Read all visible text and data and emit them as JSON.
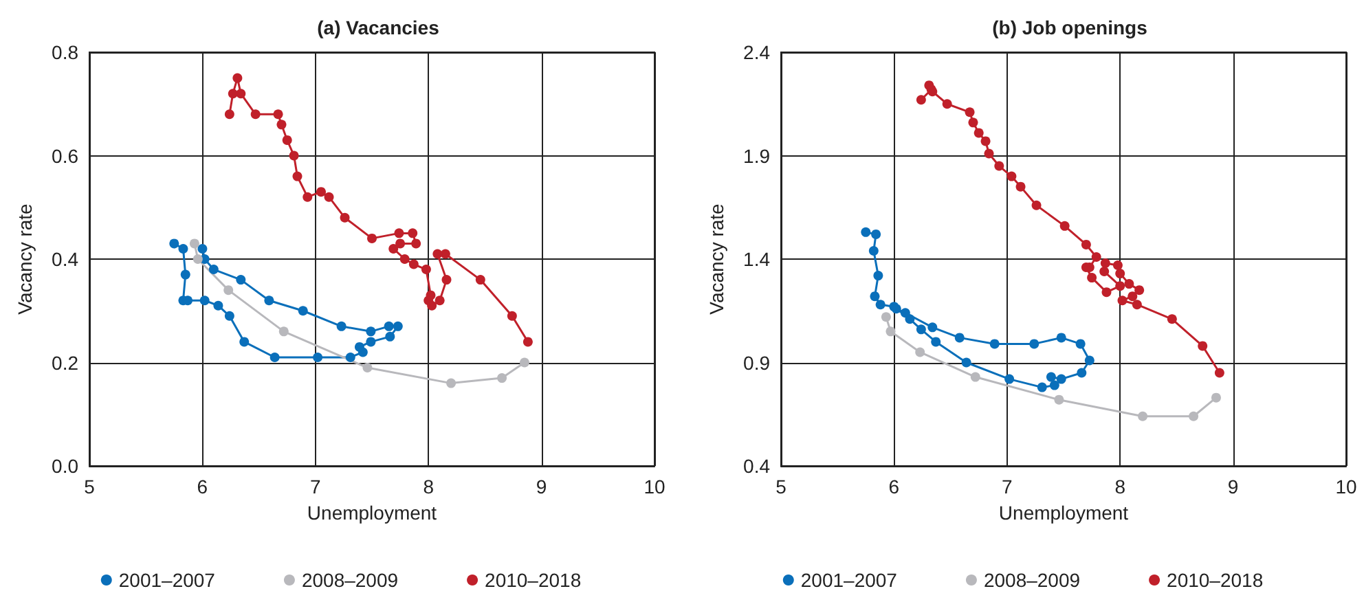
{
  "chart_data": [
    {
      "type": "line",
      "title": "(a) Vacancies",
      "xlabel": "Unemployment",
      "ylabel": "Vacancy rate",
      "xlim": [
        5,
        10
      ],
      "xticks": [
        5,
        6,
        7,
        8,
        9,
        10
      ],
      "ylim": [
        0,
        0.8
      ],
      "yticks": [
        {
          "value": 0,
          "label": "0.0"
        },
        {
          "value": 0.2,
          "label": "0.2"
        },
        {
          "value": 0.4,
          "label": "0.4"
        },
        {
          "value": 0.6,
          "label": "0.6"
        },
        {
          "value": 0.8,
          "label": "0.8"
        }
      ],
      "grid": true,
      "legend": "bottom",
      "marker": "circle",
      "line_style": "solid",
      "series": [
        {
          "name": "2001–2007",
          "color": "#0a6fba",
          "x": [
            5.75,
            5.83,
            5.85,
            5.83,
            5.87,
            6.02,
            6.14,
            6.24,
            6.37,
            6.64,
            7.02,
            7.31,
            7.42,
            7.39,
            7.49,
            7.66,
            7.73,
            7.65,
            7.49,
            7.23,
            6.89,
            6.59,
            6.34,
            6.1,
            6.02,
            6.0
          ],
          "values": [
            0.43,
            0.42,
            0.37,
            0.32,
            0.32,
            0.32,
            0.31,
            0.29,
            0.24,
            0.21,
            0.21,
            0.21,
            0.22,
            0.23,
            0.24,
            0.25,
            0.27,
            0.27,
            0.26,
            0.27,
            0.3,
            0.32,
            0.36,
            0.38,
            0.4,
            0.42
          ]
        },
        {
          "name": "2008–2009",
          "color": "#b8b8bc",
          "x": [
            5.93,
            5.96,
            6.23,
            6.72,
            7.46,
            8.2,
            8.65,
            8.85
          ],
          "values": [
            0.43,
            0.4,
            0.34,
            0.26,
            0.19,
            0.16,
            0.17,
            0.2
          ]
        },
        {
          "name": "2010–2018",
          "color": "#c0202a",
          "x": [
            8.88,
            8.74,
            8.46,
            8.15,
            8.08,
            8.16,
            8.1,
            8.03,
            8.0,
            8.02,
            7.98,
            7.87,
            7.79,
            7.69,
            7.75,
            7.89,
            7.86,
            7.74,
            7.5,
            7.26,
            7.12,
            7.05,
            6.93,
            6.84,
            6.81,
            6.75,
            6.7,
            6.67,
            6.47,
            6.34,
            6.31,
            6.27,
            6.24
          ],
          "values": [
            0.24,
            0.29,
            0.36,
            0.41,
            0.41,
            0.36,
            0.32,
            0.31,
            0.32,
            0.33,
            0.38,
            0.39,
            0.4,
            0.42,
            0.43,
            0.43,
            0.45,
            0.45,
            0.44,
            0.48,
            0.52,
            0.53,
            0.52,
            0.56,
            0.6,
            0.63,
            0.66,
            0.68,
            0.68,
            0.72,
            0.75,
            0.72,
            0.68
          ]
        }
      ]
    },
    {
      "type": "line",
      "title": "(b) Job openings",
      "xlabel": "Unemployment",
      "ylabel": "Vacancy rate",
      "xlim": [
        5,
        10
      ],
      "xticks": [
        5,
        6,
        7,
        8,
        9,
        10
      ],
      "ylim": [
        0.4,
        2.4
      ],
      "yticks": [
        0.4,
        0.9,
        1.4,
        1.9,
        2.4
      ],
      "grid": true,
      "legend": "bottom",
      "marker": "circle",
      "line_style": "solid",
      "series": [
        {
          "name": "2001–2007",
          "color": "#0a6fba",
          "x": [
            5.75,
            5.84,
            5.82,
            5.86,
            5.83,
            5.88,
            6.0,
            6.14,
            6.24,
            6.37,
            6.64,
            7.02,
            7.31,
            7.42,
            7.39,
            7.48,
            7.66,
            7.73,
            7.65,
            7.48,
            7.24,
            6.89,
            6.58,
            6.34,
            6.1,
            6.02
          ],
          "values": [
            1.53,
            1.52,
            1.44,
            1.32,
            1.22,
            1.18,
            1.17,
            1.11,
            1.06,
            1.0,
            0.9,
            0.82,
            0.78,
            0.79,
            0.83,
            0.82,
            0.85,
            0.91,
            0.99,
            1.02,
            0.99,
            0.99,
            1.02,
            1.07,
            1.14,
            1.16
          ]
        },
        {
          "name": "2008–2009",
          "color": "#b8b8bc",
          "x": [
            5.93,
            5.97,
            6.23,
            6.72,
            7.46,
            8.2,
            8.65,
            8.85
          ],
          "values": [
            1.12,
            1.05,
            0.95,
            0.83,
            0.72,
            0.64,
            0.64,
            0.73
          ]
        },
        {
          "name": "2010–2018",
          "color": "#c0202a",
          "x": [
            8.88,
            8.73,
            8.46,
            8.15,
            8.02,
            8.11,
            8.17,
            8.08,
            8.0,
            7.98,
            7.87,
            7.86,
            8.0,
            7.88,
            7.75,
            7.7,
            7.73,
            7.79,
            7.7,
            7.51,
            7.26,
            7.12,
            7.04,
            6.93,
            6.84,
            6.81,
            6.75,
            6.7,
            6.67,
            6.47,
            6.34,
            6.31,
            6.33,
            6.24
          ],
          "values": [
            0.85,
            0.98,
            1.11,
            1.18,
            1.2,
            1.22,
            1.25,
            1.28,
            1.33,
            1.37,
            1.38,
            1.34,
            1.27,
            1.24,
            1.31,
            1.36,
            1.36,
            1.41,
            1.47,
            1.56,
            1.66,
            1.75,
            1.8,
            1.85,
            1.91,
            1.97,
            2.01,
            2.06,
            2.11,
            2.15,
            2.21,
            2.24,
            2.22,
            2.17
          ]
        }
      ]
    }
  ]
}
